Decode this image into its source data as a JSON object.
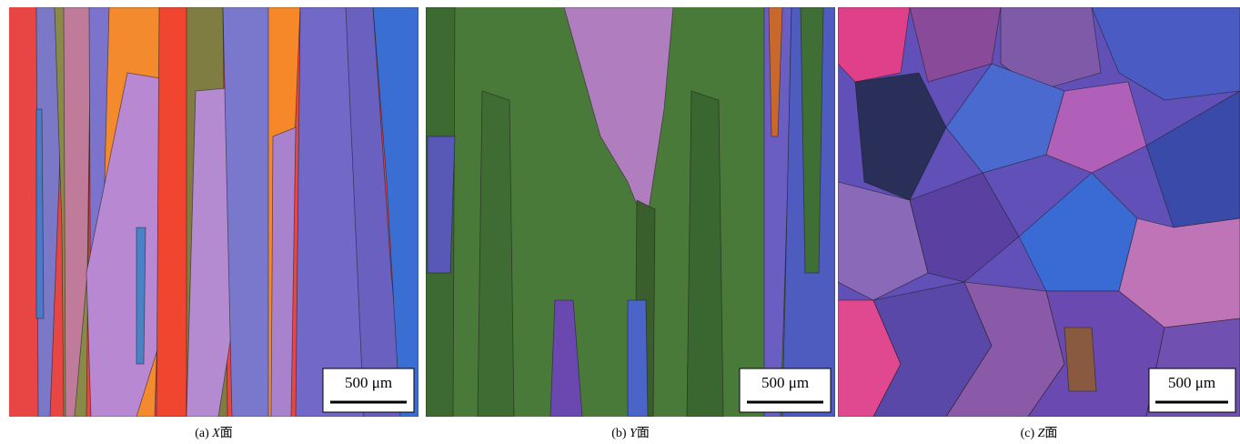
{
  "panels": [
    {
      "scale_bar": "500 μm",
      "caption": {
        "label": "(a)",
        "plane": "X",
        "suffix": "面"
      }
    },
    {
      "scale_bar": "500 μm",
      "caption": {
        "label": "(b)",
        "plane": "Y",
        "suffix": "面"
      }
    },
    {
      "scale_bar": "500 μm",
      "caption": {
        "label": "(c)",
        "plane": "Z",
        "suffix": "面"
      }
    }
  ]
}
